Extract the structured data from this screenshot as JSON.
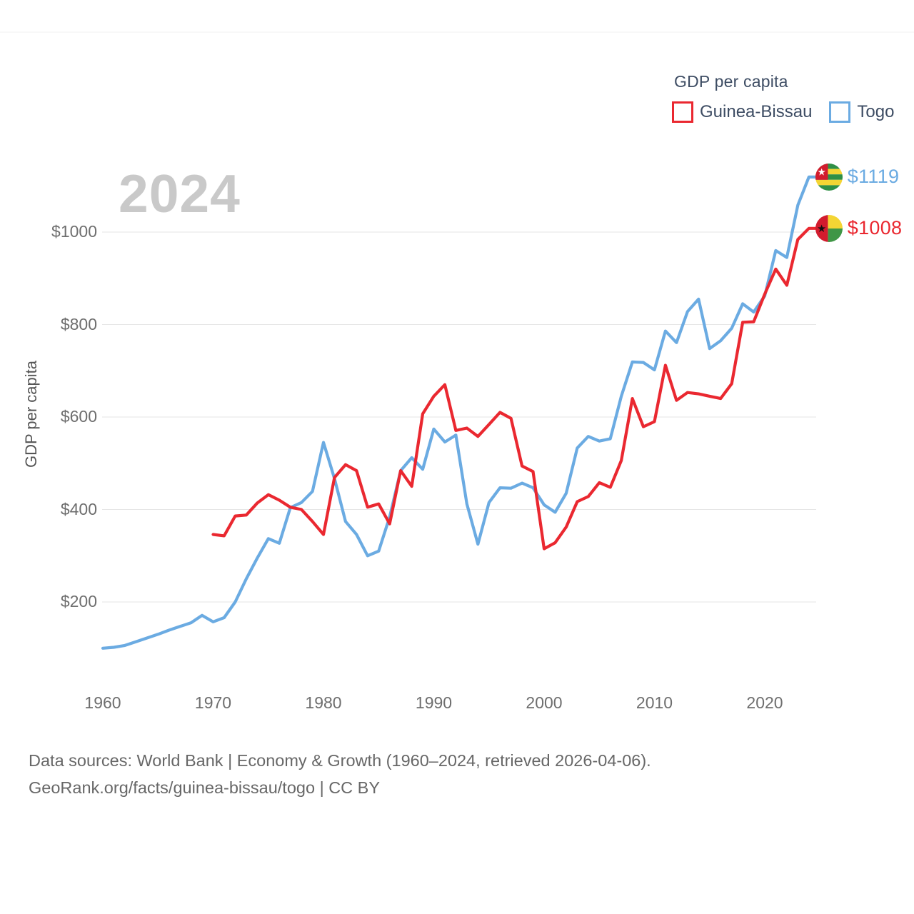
{
  "legend": {
    "title": "GDP per capita",
    "entries": [
      {
        "label": "Guinea-Bissau",
        "color": "#ea2830"
      },
      {
        "label": "Togo",
        "color": "#6babe2"
      }
    ]
  },
  "watermark": {
    "year": "2024"
  },
  "y_axis": {
    "title": "GDP per capita",
    "ticks": [
      {
        "value": 200,
        "label": "$200"
      },
      {
        "value": 400,
        "label": "$400"
      },
      {
        "value": 600,
        "label": "$600"
      },
      {
        "value": 800,
        "label": "$800"
      },
      {
        "value": 1000,
        "label": "$1000"
      }
    ]
  },
  "x_axis": {
    "ticks": [
      {
        "value": 1960,
        "label": "1960"
      },
      {
        "value": 1970,
        "label": "1970"
      },
      {
        "value": 1980,
        "label": "1980"
      },
      {
        "value": 1990,
        "label": "1990"
      },
      {
        "value": 2000,
        "label": "2000"
      },
      {
        "value": 2010,
        "label": "2010"
      },
      {
        "value": 2020,
        "label": "2020"
      }
    ]
  },
  "end_labels": {
    "togo": {
      "text": "$1119",
      "color": "#6babe2"
    },
    "guinea_bissau": {
      "text": "$1008",
      "color": "#ea2830"
    }
  },
  "footer": {
    "line1": "Data sources: World Bank | Economy & Growth (1960–2024, retrieved 2026-04-06).",
    "line2": "GeoRank.org/facts/guinea-bissau/togo | CC BY"
  },
  "colors": {
    "guinea_bissau_line": "#ea2830",
    "togo_line": "#6babe2",
    "gridline": "#e5e5e5",
    "top_border": "#f1f1f1",
    "legend_text": "#3d4c63",
    "tick_text": "#6e6e6e",
    "watermark_text": "#c9c9c9",
    "footer_text": "#676767"
  },
  "chart_data": {
    "type": "line",
    "title": "GDP per capita",
    "xlabel": "",
    "ylabel": "GDP per capita",
    "x_start_year": 1960,
    "x_end_year": 2024,
    "ylim": [
      100,
      1150
    ],
    "grid": true,
    "legend_position": "top-right",
    "series": [
      {
        "name": "Guinea-Bissau",
        "color": "#ea2830",
        "end_label": "$1008",
        "values": [
          null,
          null,
          null,
          null,
          null,
          null,
          null,
          null,
          null,
          null,
          346,
          343,
          386,
          388,
          414,
          432,
          420,
          405,
          400,
          374,
          346,
          469,
          497,
          484,
          405,
          412,
          369,
          484,
          450,
          607,
          645,
          670,
          571,
          576,
          558,
          584,
          610,
          597,
          494,
          482,
          315,
          328,
          362,
          417,
          428,
          458,
          448,
          506,
          640,
          579,
          590,
          712,
          636,
          653,
          650,
          645,
          640,
          672,
          805,
          806,
          866,
          920,
          885,
          984,
          1008
        ]
      },
      {
        "name": "Togo",
        "color": "#6babe2",
        "end_label": "$1119",
        "values": [
          100,
          102,
          106,
          114,
          122,
          130,
          139,
          147,
          155,
          171,
          157,
          166,
          200,
          250,
          295,
          337,
          327,
          404,
          415,
          439,
          545,
          467,
          374,
          346,
          300,
          310,
          384,
          484,
          512,
          487,
          574,
          546,
          561,
          412,
          325,
          415,
          447,
          446,
          457,
          447,
          410,
          394,
          435,
          533,
          558,
          548,
          553,
          645,
          719,
          718,
          702,
          786,
          761,
          828,
          855,
          748,
          765,
          792,
          845,
          827,
          862,
          960,
          945,
          1058,
          1119
        ]
      }
    ]
  }
}
